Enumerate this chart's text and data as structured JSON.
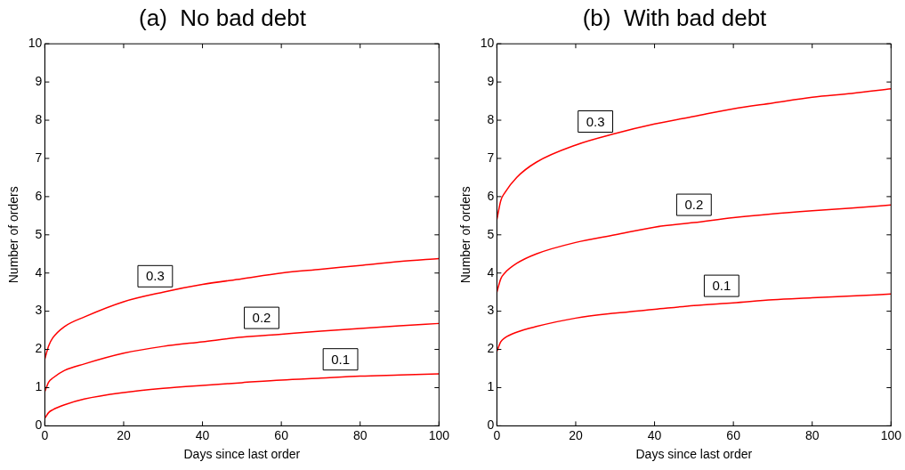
{
  "chart_data": [
    {
      "type": "line",
      "title": "(a)  No bad debt",
      "xlabel": "Days since last order",
      "ylabel": "Number of orders",
      "x": [
        0,
        1,
        2,
        5,
        10,
        20,
        30,
        40,
        50,
        60,
        70,
        80,
        90,
        100
      ],
      "xlim": [
        0,
        100
      ],
      "xticks": [
        0,
        20,
        40,
        60,
        80,
        100
      ],
      "ylim": [
        0,
        10
      ],
      "yticks": [
        0,
        1,
        2,
        3,
        4,
        5,
        6,
        7,
        8,
        9,
        10
      ],
      "grid": false,
      "legend": false,
      "marker": "none",
      "line_style": "solid",
      "series": [
        {
          "name": "0.1",
          "color": "#ff0000",
          "values": [
            0.2,
            0.35,
            0.42,
            0.55,
            0.7,
            0.87,
            0.98,
            1.06,
            1.13,
            1.2,
            1.25,
            1.3,
            1.33,
            1.36
          ]
        },
        {
          "name": "0.2",
          "color": "#ff0000",
          "values": [
            0.9,
            1.15,
            1.25,
            1.45,
            1.62,
            1.9,
            2.08,
            2.2,
            2.32,
            2.4,
            2.48,
            2.55,
            2.62,
            2.68
          ]
        },
        {
          "name": "0.3",
          "color": "#ff0000",
          "values": [
            1.75,
            2.1,
            2.3,
            2.6,
            2.85,
            3.25,
            3.5,
            3.7,
            3.85,
            4.0,
            4.1,
            4.2,
            4.3,
            4.38
          ]
        }
      ]
    },
    {
      "type": "line",
      "title": "(b)  With bad debt",
      "xlabel": "Days since last order",
      "ylabel": "Number of orders",
      "x": [
        0,
        1,
        2,
        5,
        10,
        20,
        30,
        40,
        50,
        60,
        70,
        80,
        90,
        100
      ],
      "xlim": [
        0,
        100
      ],
      "xticks": [
        0,
        20,
        40,
        60,
        80,
        100
      ],
      "ylim": [
        0,
        10
      ],
      "yticks": [
        0,
        1,
        2,
        3,
        4,
        5,
        6,
        7,
        8,
        9,
        10
      ],
      "grid": false,
      "legend": false,
      "marker": "none",
      "line_style": "solid",
      "series": [
        {
          "name": "0.1",
          "color": "#ff0000",
          "values": [
            1.95,
            2.2,
            2.3,
            2.45,
            2.6,
            2.82,
            2.95,
            3.05,
            3.15,
            3.22,
            3.3,
            3.35,
            3.4,
            3.45
          ]
        },
        {
          "name": "0.2",
          "color": "#ff0000",
          "values": [
            3.5,
            3.85,
            4.0,
            4.25,
            4.5,
            4.8,
            5.0,
            5.2,
            5.32,
            5.45,
            5.55,
            5.63,
            5.7,
            5.78
          ]
        },
        {
          "name": "0.3",
          "color": "#ff0000",
          "values": [
            5.4,
            5.9,
            6.1,
            6.5,
            6.9,
            7.35,
            7.65,
            7.9,
            8.1,
            8.3,
            8.45,
            8.6,
            8.7,
            8.82
          ]
        }
      ]
    }
  ]
}
